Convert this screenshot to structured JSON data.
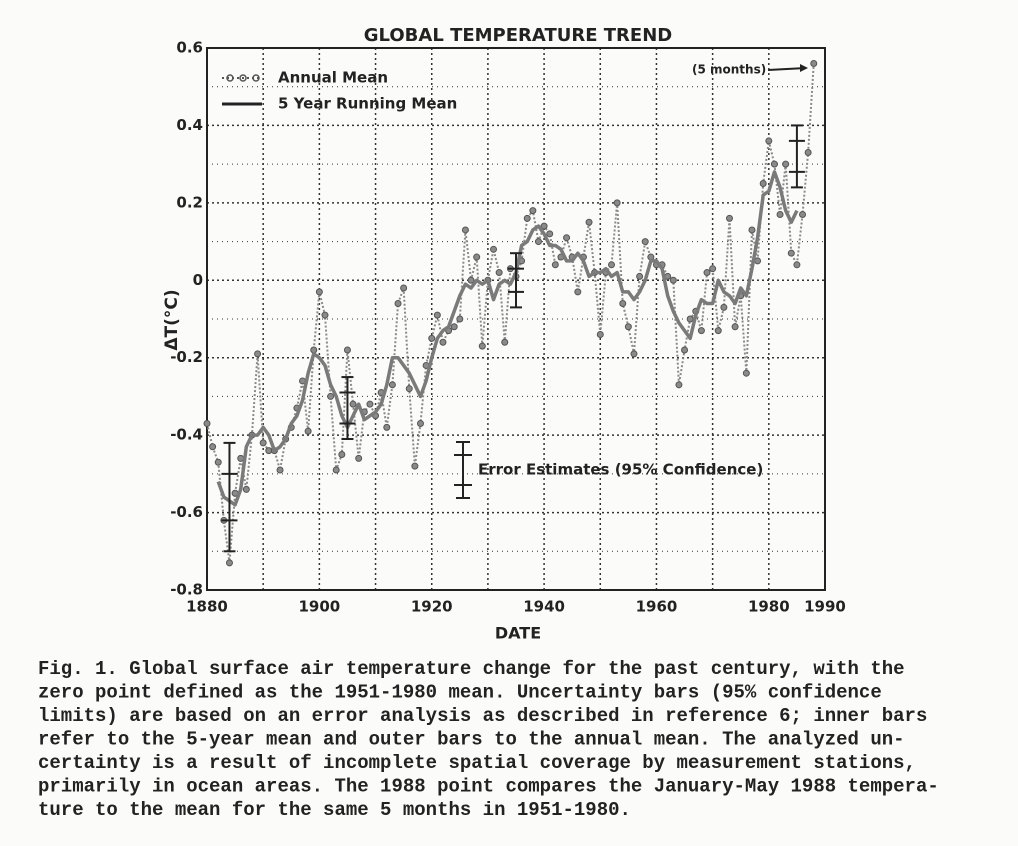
{
  "chart_data": {
    "type": "line",
    "title": "GLOBAL TEMPERATURE TREND",
    "x_label": "DATE",
    "y_label": "ΔT(°C)",
    "xlim": [
      1880,
      1990
    ],
    "ylim": [
      -0.8,
      0.6
    ],
    "xticks": [
      1880,
      1900,
      1920,
      1940,
      1960,
      1980,
      1990
    ],
    "xgrid_minor": [
      1890,
      1910,
      1930,
      1950,
      1970
    ],
    "yticks": [
      0.6,
      0.4,
      0.2,
      0,
      -0.2,
      -0.4,
      -0.6,
      -0.8
    ],
    "ygrid_minor": [
      0.5,
      0.3,
      0.1,
      -0.1,
      -0.3,
      -0.5,
      -0.7
    ],
    "grid": true,
    "legend": "top-left",
    "series": [
      {
        "name": "Annual Mean",
        "color": "#8a8a8a",
        "style": "dotted-markers",
        "x": [
          1880,
          1881,
          1882,
          1883,
          1884,
          1885,
          1886,
          1887,
          1888,
          1889,
          1890,
          1891,
          1892,
          1893,
          1894,
          1895,
          1896,
          1897,
          1898,
          1899,
          1900,
          1901,
          1902,
          1903,
          1904,
          1905,
          1906,
          1907,
          1908,
          1909,
          1910,
          1911,
          1912,
          1913,
          1914,
          1915,
          1916,
          1917,
          1918,
          1919,
          1920,
          1921,
          1922,
          1923,
          1924,
          1925,
          1926,
          1927,
          1928,
          1929,
          1930,
          1931,
          1932,
          1933,
          1934,
          1935,
          1936,
          1937,
          1938,
          1939,
          1940,
          1941,
          1942,
          1943,
          1944,
          1945,
          1946,
          1947,
          1948,
          1949,
          1950,
          1951,
          1952,
          1953,
          1954,
          1955,
          1956,
          1957,
          1958,
          1959,
          1960,
          1961,
          1962,
          1963,
          1964,
          1965,
          1966,
          1967,
          1968,
          1969,
          1970,
          1971,
          1972,
          1973,
          1974,
          1975,
          1976,
          1977,
          1978,
          1979,
          1980,
          1981,
          1982,
          1983,
          1984,
          1985,
          1986,
          1987,
          1988
        ],
        "values": [
          -0.37,
          -0.43,
          -0.47,
          -0.62,
          -0.73,
          -0.55,
          -0.46,
          -0.54,
          -0.4,
          -0.19,
          -0.42,
          -0.44,
          -0.44,
          -0.49,
          -0.41,
          -0.38,
          -0.33,
          -0.26,
          -0.39,
          -0.18,
          -0.03,
          -0.09,
          -0.3,
          -0.49,
          -0.45,
          -0.18,
          -0.32,
          -0.46,
          -0.34,
          -0.32,
          -0.35,
          -0.29,
          -0.38,
          -0.27,
          -0.06,
          -0.02,
          -0.28,
          -0.48,
          -0.37,
          -0.22,
          -0.15,
          -0.09,
          -0.16,
          -0.13,
          -0.12,
          -0.1,
          0.13,
          0.0,
          0.06,
          -0.17,
          0.0,
          0.08,
          0.02,
          -0.16,
          0.03,
          0.01,
          0.05,
          0.16,
          0.18,
          0.1,
          0.14,
          0.12,
          0.04,
          0.06,
          0.11,
          0.06,
          -0.03,
          0.06,
          0.15,
          0.02,
          -0.14,
          0.02,
          0.04,
          0.2,
          -0.06,
          -0.12,
          -0.19,
          0.01,
          0.1,
          0.06,
          0.04,
          0.04,
          0.01,
          0.0,
          -0.27,
          -0.18,
          -0.1,
          -0.08,
          -0.13,
          0.02,
          0.03,
          -0.13,
          -0.07,
          0.16,
          -0.12,
          -0.04,
          -0.24,
          0.13,
          0.05,
          0.25,
          0.36,
          0.3,
          0.17,
          0.3,
          0.07,
          0.04,
          0.17,
          0.33,
          0.56
        ]
      },
      {
        "name": "5 Year Running Mean",
        "color": "#7a7a7a",
        "style": "solid",
        "x": [
          1882,
          1883,
          1884,
          1885,
          1886,
          1887,
          1888,
          1889,
          1890,
          1891,
          1892,
          1893,
          1894,
          1895,
          1896,
          1897,
          1898,
          1899,
          1900,
          1901,
          1902,
          1903,
          1904,
          1905,
          1906,
          1907,
          1908,
          1909,
          1910,
          1911,
          1912,
          1913,
          1914,
          1915,
          1916,
          1917,
          1918,
          1919,
          1920,
          1921,
          1922,
          1923,
          1924,
          1925,
          1926,
          1927,
          1928,
          1929,
          1930,
          1931,
          1932,
          1933,
          1934,
          1935,
          1936,
          1937,
          1938,
          1939,
          1940,
          1941,
          1942,
          1943,
          1944,
          1945,
          1946,
          1947,
          1948,
          1949,
          1950,
          1951,
          1952,
          1953,
          1954,
          1955,
          1956,
          1957,
          1958,
          1959,
          1960,
          1961,
          1962,
          1963,
          1964,
          1965,
          1966,
          1967,
          1968,
          1969,
          1970,
          1971,
          1972,
          1973,
          1974,
          1975,
          1976,
          1977,
          1978,
          1979,
          1980,
          1981,
          1982,
          1983,
          1984,
          1985
        ],
        "values": [
          -0.52,
          -0.56,
          -0.57,
          -0.58,
          -0.54,
          -0.43,
          -0.4,
          -0.4,
          -0.38,
          -0.4,
          -0.44,
          -0.43,
          -0.41,
          -0.37,
          -0.35,
          -0.31,
          -0.24,
          -0.19,
          -0.2,
          -0.22,
          -0.27,
          -0.3,
          -0.35,
          -0.38,
          -0.35,
          -0.32,
          -0.36,
          -0.35,
          -0.34,
          -0.32,
          -0.27,
          -0.2,
          -0.2,
          -0.22,
          -0.24,
          -0.27,
          -0.3,
          -0.26,
          -0.2,
          -0.15,
          -0.13,
          -0.12,
          -0.08,
          -0.04,
          -0.01,
          -0.02,
          0.0,
          -0.01,
          0.0,
          -0.05,
          -0.01,
          0.0,
          -0.01,
          0.02,
          0.09,
          0.1,
          0.13,
          0.14,
          0.12,
          0.09,
          0.09,
          0.08,
          0.05,
          0.05,
          0.07,
          0.05,
          0.01,
          0.02,
          0.02,
          0.03,
          0.01,
          0.02,
          -0.03,
          -0.03,
          -0.05,
          -0.03,
          0.0,
          0.05,
          0.05,
          0.03,
          -0.04,
          -0.08,
          -0.11,
          -0.13,
          -0.15,
          -0.09,
          -0.05,
          -0.06,
          -0.06,
          0.0,
          -0.03,
          -0.04,
          -0.06,
          -0.02,
          -0.04,
          0.03,
          0.11,
          0.22,
          0.23,
          0.28,
          0.24,
          0.18,
          0.15,
          0.18
        ]
      }
    ],
    "error_bars": [
      {
        "x": 1884,
        "center": -0.56,
        "inner": 0.06,
        "outer": 0.14
      },
      {
        "x": 1905,
        "center": -0.33,
        "inner": 0.04,
        "outer": 0.08
      },
      {
        "x": 1935,
        "center": 0.0,
        "inner": 0.03,
        "outer": 0.07
      },
      {
        "x": 1985,
        "center": 0.32,
        "inner": 0.04,
        "outer": 0.08
      }
    ],
    "annotations": [
      "(5 months)",
      "Error Estimates (95% Confidence)"
    ],
    "caption_lines": [
      "Fig. 1.  Global surface air temperature change for the past century, with the",
      "zero point defined as the 1951-1980 mean.  Uncertainty bars (95% confidence",
      "limits) are based on an error analysis as described in reference 6; inner bars",
      "refer to the 5-year mean and outer bars to the annual mean.  The analyzed un-",
      "certainty is a result of incomplete spatial coverage by measurement stations,",
      "primarily in ocean areas.  The 1988 point compares the January-May 1988 tempera-",
      "ture to the mean for the same 5 months in 1951-1980."
    ]
  }
}
